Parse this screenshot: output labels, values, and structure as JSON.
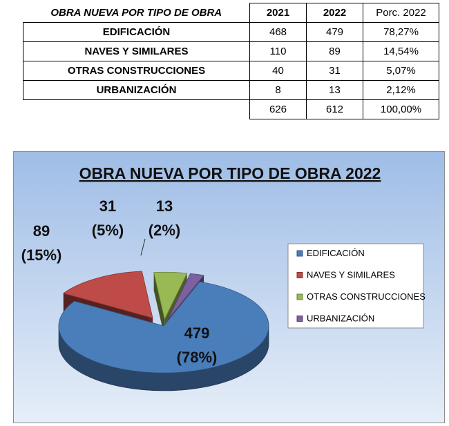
{
  "table": {
    "header": [
      "OBRA NUEVA POR TIPO DE OBRA",
      "2021",
      "2022",
      "Porc. 2022"
    ],
    "rows": [
      [
        "EDIFICACIÓN",
        "468",
        "479",
        "78,27%"
      ],
      [
        "NAVES Y SIMILARES",
        "110",
        "89",
        "14,54%"
      ],
      [
        "OTRAS CONSTRUCCIONES",
        "40",
        "31",
        "5,07%"
      ],
      [
        "URBANIZACIÓN",
        "8",
        "13",
        "2,12%"
      ]
    ],
    "totals": [
      "626",
      "612",
      "100,00%"
    ]
  },
  "chart_data": {
    "type": "pie",
    "title": "OBRA NUEVA POR TIPO DE OBRA 2022",
    "categories": [
      "EDIFICACIÓN",
      "NAVES Y SIMILARES",
      "OTRAS CONSTRUCCIONES",
      "URBANIZACIÓN"
    ],
    "values": [
      479,
      89,
      31,
      13
    ],
    "value_labels": [
      "479",
      "89",
      "31",
      "13"
    ],
    "percent_labels": [
      "(78%)",
      "(15%)",
      "(5%)",
      "(2%)"
    ],
    "colors": [
      "#4a7ebb",
      "#be4b48",
      "#98b954",
      "#7d60a0"
    ],
    "exploded": true,
    "three_d": true,
    "legend_position": "right",
    "background": [
      "#9fbde6",
      "#e6eef8"
    ]
  }
}
